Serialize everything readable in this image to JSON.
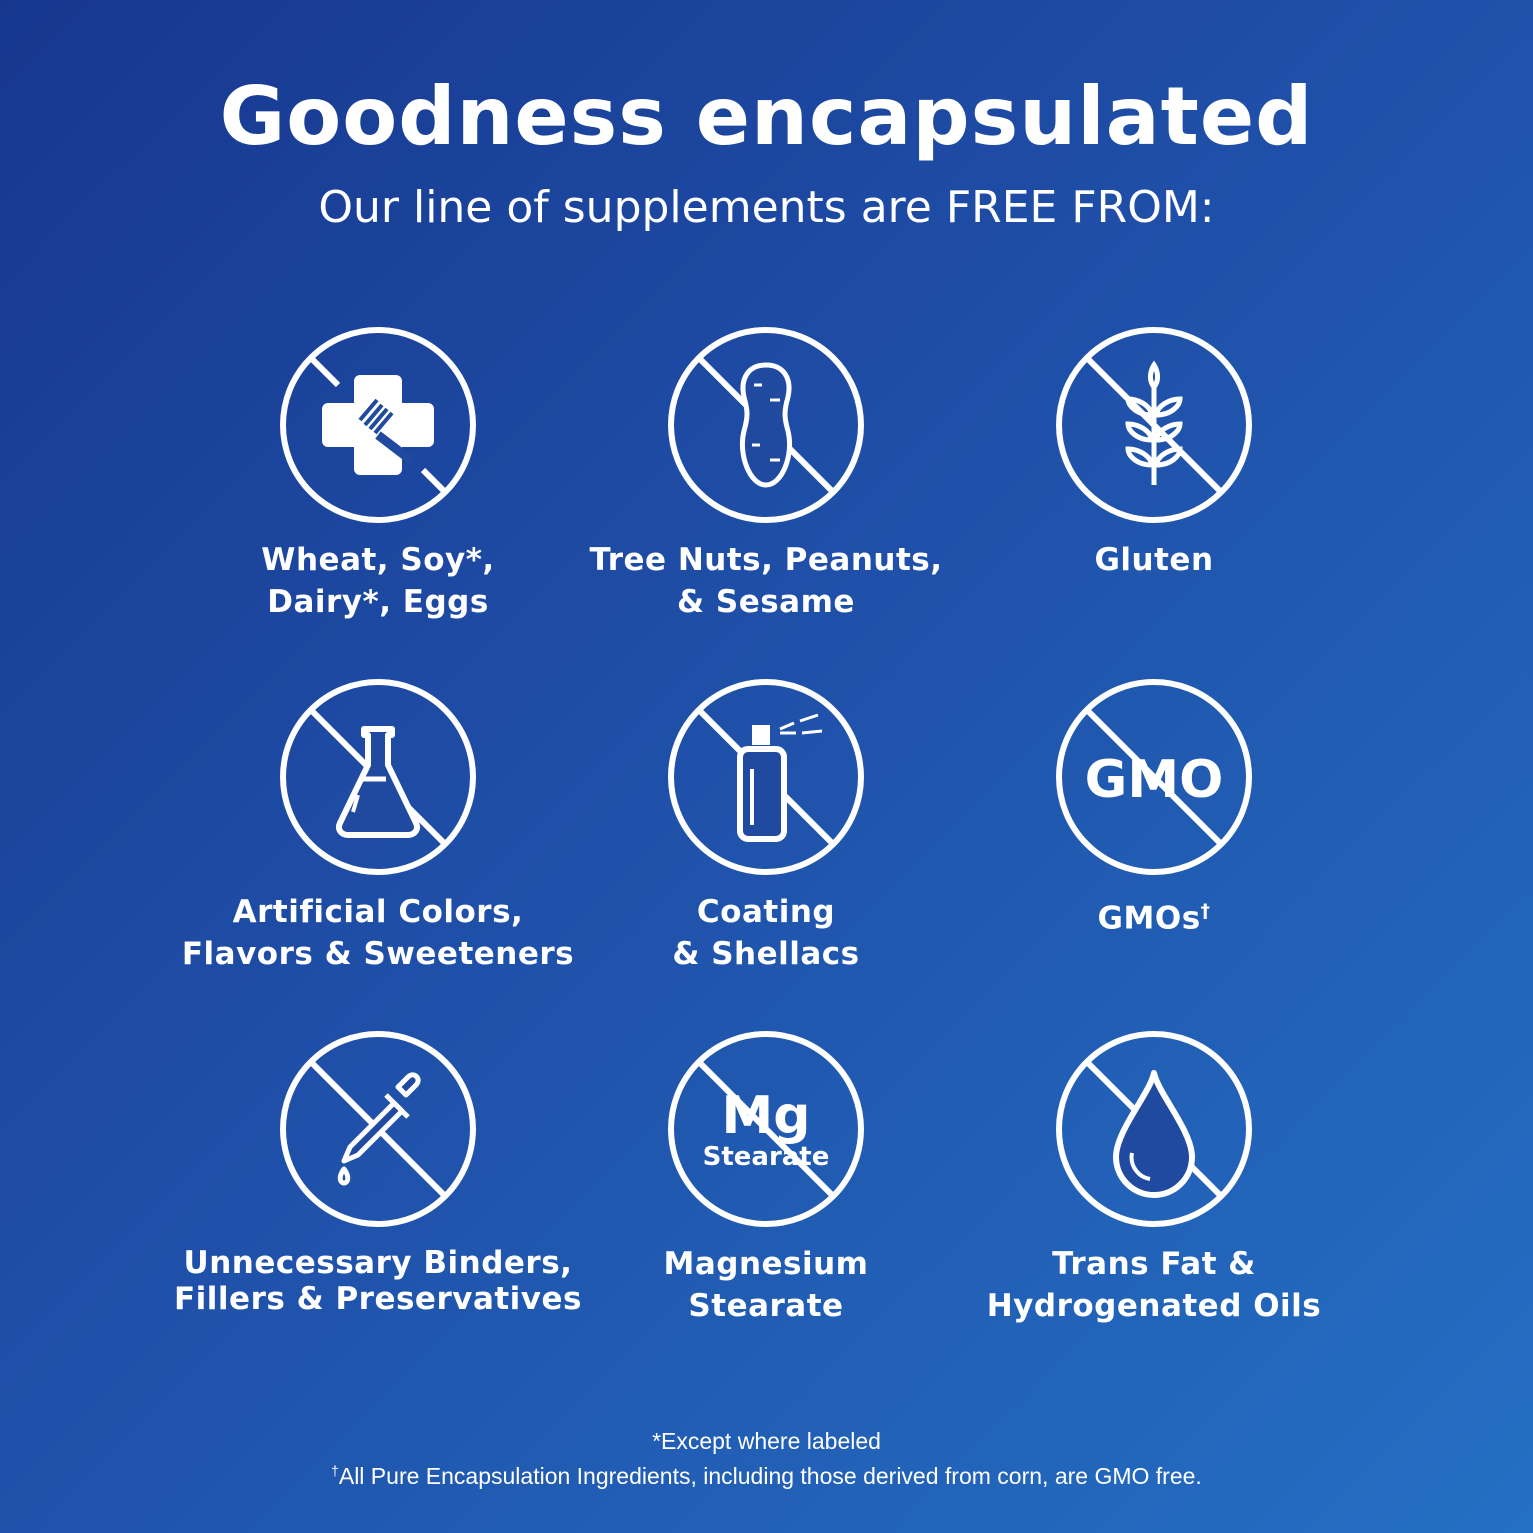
{
  "header": {
    "title": "Goodness encapsulated",
    "subtitle": "Our line of supplements are FREE FROM:"
  },
  "items": [
    {
      "icon": "no-allergen-cross-fork-icon",
      "label": "Wheat, Soy*,\nDairy*, Eggs"
    },
    {
      "icon": "no-peanut-icon",
      "label": "Tree Nuts, Peanuts,\n& Sesame"
    },
    {
      "icon": "no-wheat-icon",
      "label": "Gluten"
    },
    {
      "icon": "no-flask-icon",
      "label": "Artificial Colors,\nFlavors & Sweeteners"
    },
    {
      "icon": "no-spray-can-icon",
      "label": "Coating\n& Shellacs"
    },
    {
      "icon": "no-gmo-icon",
      "icon_text": "GMO",
      "label": "GMOs",
      "label_mark": "†"
    },
    {
      "icon": "no-dropper-icon",
      "label": "Unnecessary Binders,\nFillers & Preservatives"
    },
    {
      "icon": "no-mg-stearate-icon",
      "icon_text": "Mg",
      "icon_subtext": "Stearate",
      "label": "Magnesium\nStearate"
    },
    {
      "icon": "no-oil-drop-icon",
      "label": "Trans Fat &\nHydrogenated Oils"
    }
  ],
  "footnotes": {
    "asterisk": "*Except where labeled",
    "dagger_mark": "†",
    "dagger": "All Pure Encapsulation Ingredients, including those derived from corn, are GMO free."
  },
  "colors": {
    "background_start": "#17378f",
    "background_end": "#2470c4",
    "foreground": "#ffffff"
  }
}
